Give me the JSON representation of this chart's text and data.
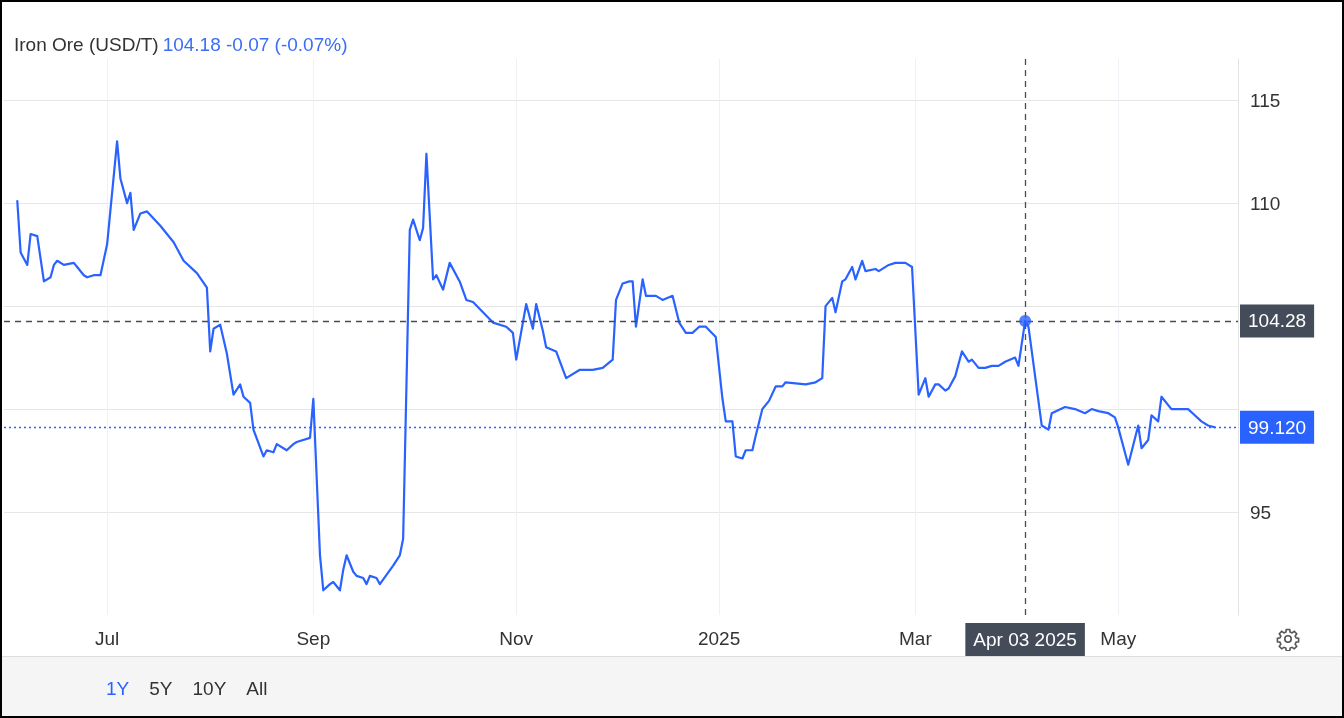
{
  "chart_data": {
    "type": "line",
    "title": "Iron Ore (USD/T)",
    "subtitle": "104.18  -0.07 (-0.07%)",
    "annotations": [
      "1Y",
      "5Y",
      "10Y",
      "All"
    ],
    "xlim": [
      "2024-05-31",
      "2025-06-06"
    ],
    "xticks": [
      {
        "value": "2024-07-01",
        "label": "Jul"
      },
      {
        "value": "2024-09-01",
        "label": "Sep"
      },
      {
        "value": "2024-11-01",
        "label": "Nov"
      },
      {
        "value": "2025-01-01",
        "label": "2025"
      },
      {
        "value": "2025-03-01",
        "label": "Mar"
      },
      {
        "value": "2025-05-01",
        "label": "May"
      }
    ],
    "ylim": [
      90,
      117
    ],
    "yticks": [
      95,
      {
        "value": 100,
        "label": null
      },
      {
        "value": 105,
        "label": null
      },
      110,
      115
    ],
    "grid": true,
    "line_style": "solid",
    "marker": "none",
    "ref_lines": [
      {
        "axis": "y",
        "value": 104.28,
        "label": "104.28",
        "color": "#454c59",
        "line_style": "dashed"
      },
      {
        "axis": "y",
        "value": 99.12,
        "label": "99.120",
        "color": "#2962ff",
        "line_style": "dotted"
      },
      {
        "axis": "x",
        "value": "2025-04-03",
        "label": "Apr 03 2025",
        "color": "#454c59",
        "line_style": "dashed"
      }
    ],
    "series": [
      {
        "color": "#2962ff",
        "x": [
          "2024-06-04",
          "2024-06-05",
          "2024-06-07",
          "2024-06-08",
          "2024-06-10",
          "2024-06-12",
          "2024-06-14",
          "2024-06-15",
          "2024-06-16",
          "2024-06-18",
          "2024-06-21",
          "2024-06-22",
          "2024-06-24",
          "2024-06-25",
          "2024-06-27",
          "2024-06-29",
          "2024-07-01",
          "2024-07-04",
          "2024-07-05",
          "2024-07-07",
          "2024-07-08",
          "2024-07-09",
          "2024-07-11",
          "2024-07-13",
          "2024-07-17",
          "2024-07-21",
          "2024-07-24",
          "2024-07-28",
          "2024-07-31",
          "2024-08-01",
          "2024-08-02",
          "2024-08-04",
          "2024-08-06",
          "2024-08-08",
          "2024-08-10",
          "2024-08-11",
          "2024-08-13",
          "2024-08-14",
          "2024-08-17",
          "2024-08-18",
          "2024-08-20",
          "2024-08-21",
          "2024-08-24",
          "2024-08-26",
          "2024-08-27",
          "2024-08-31",
          "2024-09-01",
          "2024-09-03",
          "2024-09-04",
          "2024-09-06",
          "2024-09-07",
          "2024-09-09",
          "2024-09-10",
          "2024-09-11",
          "2024-09-13",
          "2024-09-14",
          "2024-09-16",
          "2024-09-17",
          "2024-09-18",
          "2024-09-20",
          "2024-09-21",
          "2024-09-25",
          "2024-09-27",
          "2024-09-28",
          "2024-09-30",
          "2024-10-01",
          "2024-10-03",
          "2024-10-04",
          "2024-10-05",
          "2024-10-07",
          "2024-10-08",
          "2024-10-10",
          "2024-10-12",
          "2024-10-15",
          "2024-10-17",
          "2024-10-19",
          "2024-10-22",
          "2024-10-25",
          "2024-10-29",
          "2024-10-31",
          "2024-11-01",
          "2024-11-04",
          "2024-11-06",
          "2024-11-07",
          "2024-11-09",
          "2024-11-10",
          "2024-11-13",
          "2024-11-16",
          "2024-11-20",
          "2024-11-22",
          "2024-11-24",
          "2024-11-27",
          "2024-11-30",
          "2024-12-01",
          "2024-12-03",
          "2024-12-05",
          "2024-12-06",
          "2024-12-07",
          "2024-12-09",
          "2024-12-10",
          "2024-12-13",
          "2024-12-15",
          "2024-12-18",
          "2024-12-20",
          "2024-12-22",
          "2024-12-24",
          "2024-12-26",
          "2024-12-28",
          "2024-12-31",
          "2025-01-02",
          "2025-01-03",
          "2025-01-05",
          "2025-01-06",
          "2025-01-08",
          "2025-01-09",
          "2025-01-11",
          "2025-01-12",
          "2025-01-14",
          "2025-01-16",
          "2025-01-18",
          "2025-01-20",
          "2025-01-21",
          "2025-01-27",
          "2025-01-30",
          "2025-02-01",
          "2025-02-02",
          "2025-02-04",
          "2025-02-05",
          "2025-02-07",
          "2025-02-08",
          "2025-02-10",
          "2025-02-11",
          "2025-02-13",
          "2025-02-14",
          "2025-02-17",
          "2025-02-18",
          "2025-02-21",
          "2025-02-23",
          "2025-02-26",
          "2025-02-28",
          "2025-03-02",
          "2025-03-04",
          "2025-03-05",
          "2025-03-07",
          "2025-03-08",
          "2025-03-10",
          "2025-03-11",
          "2025-03-13",
          "2025-03-15",
          "2025-03-17",
          "2025-03-18",
          "2025-03-20",
          "2025-03-22",
          "2025-03-24",
          "2025-03-26",
          "2025-03-28",
          "2025-03-31",
          "2025-04-01",
          "2025-04-03",
          "2025-04-04",
          "2025-04-08",
          "2025-04-10",
          "2025-04-11",
          "2025-04-15",
          "2025-04-18",
          "2025-04-21",
          "2025-04-23",
          "2025-04-25",
          "2025-04-28",
          "2025-04-30",
          "2025-05-01",
          "2025-05-04",
          "2025-05-07",
          "2025-05-08",
          "2025-05-10",
          "2025-05-11",
          "2025-05-13",
          "2025-05-14",
          "2025-05-17",
          "2025-05-19",
          "2025-05-22",
          "2025-05-24",
          "2025-05-26",
          "2025-05-28",
          "2025-05-30"
        ],
        "values": [
          110.1,
          107.6,
          107.0,
          108.5,
          108.4,
          106.2,
          106.4,
          107.0,
          107.2,
          107.0,
          107.1,
          106.9,
          106.5,
          106.4,
          106.5,
          106.5,
          108.0,
          113.0,
          111.2,
          110.0,
          110.5,
          108.7,
          109.5,
          109.6,
          108.9,
          108.1,
          107.2,
          106.6,
          105.9,
          102.8,
          103.9,
          104.1,
          102.7,
          100.7,
          101.2,
          100.6,
          100.3,
          99.0,
          97.7,
          98.0,
          97.9,
          98.3,
          98.0,
          98.3,
          98.4,
          98.6,
          100.5,
          92.9,
          91.2,
          91.5,
          91.6,
          91.2,
          92.2,
          92.9,
          92.1,
          91.9,
          91.8,
          91.5,
          91.9,
          91.8,
          91.5,
          92.4,
          92.9,
          93.7,
          108.7,
          109.2,
          108.2,
          108.8,
          112.4,
          106.3,
          106.5,
          105.8,
          107.1,
          106.2,
          105.3,
          105.2,
          104.7,
          104.2,
          104.0,
          103.7,
          102.4,
          105.1,
          103.9,
          105.1,
          103.8,
          103.0,
          102.8,
          101.5,
          101.9,
          101.9,
          101.9,
          102.0,
          102.4,
          105.3,
          106.1,
          106.2,
          106.2,
          104.0,
          106.3,
          105.5,
          105.5,
          105.3,
          105.5,
          104.2,
          103.7,
          103.7,
          104.0,
          104.0,
          103.5,
          100.5,
          99.4,
          99.4,
          97.7,
          97.6,
          98.0,
          98.0,
          98.7,
          100.0,
          100.4,
          101.1,
          101.1,
          101.3,
          101.2,
          101.3,
          101.5,
          105.0,
          105.4,
          104.7,
          106.2,
          106.3,
          106.9,
          106.3,
          107.2,
          106.7,
          106.8,
          106.7,
          107.0,
          107.1,
          107.1,
          106.9,
          100.7,
          101.5,
          100.6,
          101.2,
          101.2,
          100.9,
          101.0,
          101.6,
          102.8,
          102.3,
          102.4,
          102.0,
          102.0,
          102.1,
          102.1,
          102.3,
          102.5,
          102.1,
          104.28,
          104.0,
          99.2,
          99.0,
          99.8,
          100.1,
          100.0,
          99.8,
          100.0,
          99.9,
          99.8,
          99.6,
          99.1,
          97.3,
          99.2,
          98.1,
          98.5,
          99.7,
          99.4,
          100.6,
          100.0,
          100.0,
          100.0,
          99.7,
          99.4,
          99.2,
          99.12
        ]
      },
      {
        "type": "scatter",
        "marker": "circle",
        "color": "#2962ff",
        "x": [
          "2025-04-03"
        ],
        "values": [
          104.28
        ]
      }
    ]
  }
}
